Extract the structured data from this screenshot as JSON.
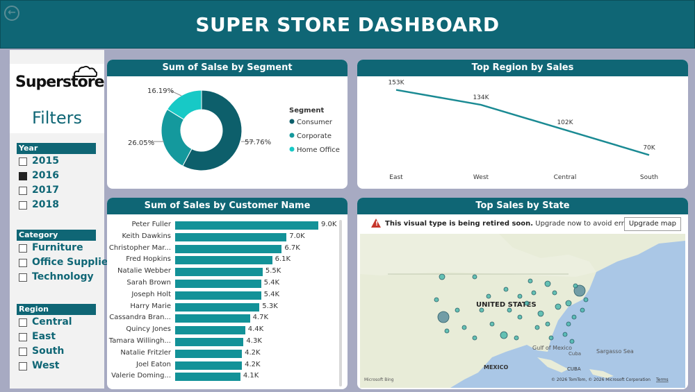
{
  "header": {
    "title": "SUPER STORE DASHBOARD"
  },
  "sidebar": {
    "logo_text": "Superstore",
    "filters_label": "Filters",
    "slicers": [
      {
        "title": "Year",
        "items": [
          {
            "label": "2015",
            "checked": false
          },
          {
            "label": "2016",
            "checked": true
          },
          {
            "label": "2017",
            "checked": false
          },
          {
            "label": "2018",
            "checked": false
          }
        ]
      },
      {
        "title": "Category",
        "items": [
          {
            "label": "Furniture",
            "checked": false
          },
          {
            "label": "Office Supplies",
            "checked": false
          },
          {
            "label": "Technology",
            "checked": false
          }
        ]
      },
      {
        "title": "Region",
        "items": [
          {
            "label": "Central",
            "checked": false
          },
          {
            "label": "East",
            "checked": false
          },
          {
            "label": "South",
            "checked": false
          },
          {
            "label": "West",
            "checked": false
          }
        ]
      }
    ]
  },
  "segment_panel": {
    "title": "Sum of Salse by Segment",
    "legend_title": "Segment",
    "labels": [
      "57.76%",
      "26.05%",
      "16.19%"
    ]
  },
  "region_panel": {
    "title": "Top Region by Sales"
  },
  "customer_panel": {
    "title": "Sum of Sales by Customer Name"
  },
  "map_panel": {
    "title": "Top Sales by State",
    "warning_bold": "This visual type is being retired soon.",
    "warning_rest": " Upgrade now to avoid errors.",
    "upgrade_button": "Upgrade map",
    "labels": {
      "country": "UNITED STATES",
      "cuba": "Cuba",
      "gulf": "Gulf of Mexico",
      "sargasso": "Sargasso Sea",
      "mexico": "MEXICO",
      "cuba_caps": "CUBA",
      "bing": "Microsoft Bing",
      "copyright": "© 2026 TomTom, © 2026 Microsoft Corporation",
      "terms": "Terms"
    }
  },
  "colors": {
    "primary": "#0f6675",
    "bar": "#139298",
    "consumer": "#0d5f6b",
    "corporate": "#14999d",
    "home_office": "#17c9c6"
  },
  "chart_data": [
    {
      "type": "pie",
      "title": "Sum of Salse by Segment",
      "categories": [
        "Consumer",
        "Corporate",
        "Home Office"
      ],
      "values": [
        57.76,
        26.05,
        16.19
      ],
      "labels": [
        "57.76%",
        "26.05%",
        "16.19%"
      ],
      "legend": "right"
    },
    {
      "type": "line",
      "title": "Top Region by Sales",
      "categories": [
        "East",
        "West",
        "Central",
        "South"
      ],
      "values": [
        153,
        134,
        102,
        70
      ],
      "labels": [
        "153K",
        "134K",
        "102K",
        "70K"
      ],
      "ylim": [
        50,
        165
      ]
    },
    {
      "type": "bar",
      "title": "Sum of Sales by Customer Name",
      "categories": [
        "Peter Fuller",
        "Keith Dawkins",
        "Christopher Mar...",
        "Fred Hopkins",
        "Natalie Webber",
        "Sarah Brown",
        "Joseph Holt",
        "Harry Marie",
        "Cassandra Bran...",
        "Quincy Jones",
        "Tamara Willingh...",
        "Natalie Fritzler",
        "Joel Eaton",
        "Valerie Doming..."
      ],
      "values": [
        9.0,
        7.0,
        6.7,
        6.1,
        5.5,
        5.4,
        5.4,
        5.3,
        4.7,
        4.4,
        4.3,
        4.2,
        4.2,
        4.1
      ],
      "labels": [
        "9.0K",
        "7.0K",
        "6.7K",
        "6.1K",
        "5.5K",
        "5.4K",
        "5.4K",
        "5.3K",
        "4.7K",
        "4.4K",
        "4.3K",
        "4.2K",
        "4.2K",
        "4.1K"
      ],
      "xlim": [
        0,
        9.0
      ]
    }
  ]
}
